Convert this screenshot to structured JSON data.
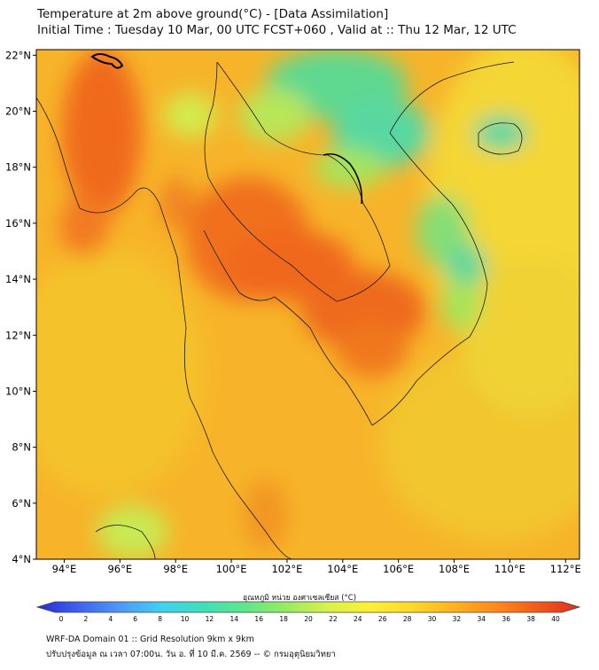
{
  "title": {
    "line1": "Temperature at 2m above ground(°C) - [Data Assimilation]",
    "line2": "Initial Time : Tuesday 10 Mar, 00 UTC FCST+060 , Valid at :: Thu 12 Mar, 12 UTC"
  },
  "axes": {
    "x_ticks": [
      "94°E",
      "96°E",
      "98°E",
      "100°E",
      "102°E",
      "104°E",
      "106°E",
      "108°E",
      "110°E",
      "112°E"
    ],
    "y_ticks": [
      "22°N",
      "20°N",
      "18°N",
      "16°N",
      "14°N",
      "12°N",
      "10°N",
      "8°N",
      "6°N",
      "4°N"
    ],
    "lon_range": [
      93,
      112.5
    ],
    "lat_range": [
      4,
      22.2
    ]
  },
  "colorbar": {
    "title": "อุณหภูมิ หน่วย องศาเซลเซียส (°C)",
    "ticks": [
      "0",
      "2",
      "4",
      "6",
      "8",
      "10",
      "12",
      "14",
      "16",
      "18",
      "20",
      "22",
      "24",
      "26",
      "28",
      "30",
      "32",
      "34",
      "36",
      "38",
      "40"
    ],
    "colors": [
      "#2a2ad6",
      "#3f62ee",
      "#4f9af7",
      "#3fd2f0",
      "#3fe0b8",
      "#5fe68a",
      "#9aec62",
      "#d9f24a",
      "#fff032",
      "#ffd828",
      "#ffb21e",
      "#ff8a1c",
      "#f25a1a",
      "#e02e1e"
    ]
  },
  "footer": {
    "line1": "WRF-DA Domain 01 :: Grid Resolution 9km x 9km",
    "line2": "ปรับปรุงข้อมูล ณ เวลา 07:00น. วัน อ. ที่ 10 มี.ค. 2569 -- © กรมอุตุนิยมวิทยา"
  }
}
